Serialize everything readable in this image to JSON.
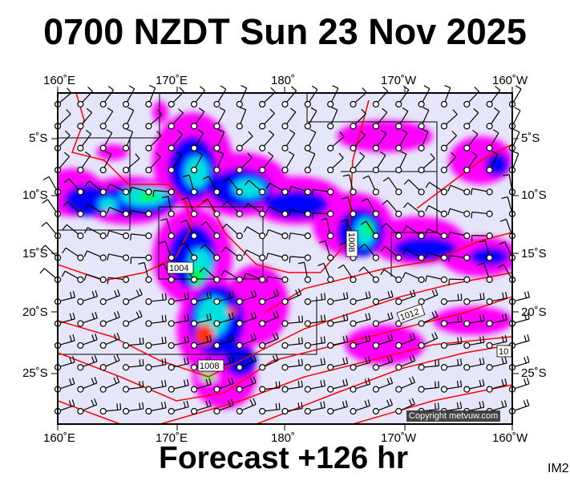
{
  "title": "0700 NZDT Sun 23 Nov 2025",
  "footer": "Forecast +126 hr",
  "corner_label": "IM2",
  "copyright": "Copyright metvuw.com",
  "axes": {
    "top": [
      "160˚E",
      "170˚E",
      "180˚",
      "170˚W",
      "160˚W"
    ],
    "bottom": [
      "160˚E",
      "170˚E",
      "180˚",
      "170˚W",
      "160˚W"
    ],
    "left": [
      "5˚S",
      "10˚S",
      "15˚S",
      "20˚S",
      "25˚S"
    ],
    "right": [
      "5˚S",
      "10˚S",
      "15˚S",
      "20˚S",
      "25˚S"
    ]
  },
  "isobar_labels": [
    "1004",
    "1008",
    "1008",
    "1012",
    "10"
  ],
  "colors": {
    "background": "#e6e6fa",
    "isobar": "#ff0000",
    "rain_light": "#ff00ff",
    "rain_mid": "#0000ff",
    "rain_heavy": "#00e0e0",
    "rain_heavier": "#00ff00",
    "rain_max": "#ff3300"
  }
}
